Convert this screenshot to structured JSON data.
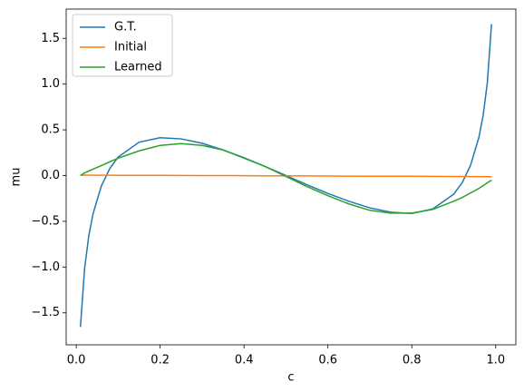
{
  "chart_data": {
    "type": "line",
    "xlabel": "c",
    "ylabel": "mu",
    "x": [
      0.01,
      0.02,
      0.03,
      0.04,
      0.06,
      0.08,
      0.1,
      0.15,
      0.2,
      0.25,
      0.3,
      0.35,
      0.4,
      0.45,
      0.5,
      0.55,
      0.6,
      0.65,
      0.7,
      0.75,
      0.8,
      0.85,
      0.9,
      0.92,
      0.94,
      0.96,
      0.97,
      0.98,
      0.99
    ],
    "series": [
      {
        "name": "G.T.",
        "color": "#1f77b4",
        "values": [
          -1.655,
          -1.012,
          -0.656,
          -0.418,
          -0.112,
          0.078,
          0.203,
          0.365,
          0.414,
          0.401,
          0.353,
          0.281,
          0.195,
          0.1,
          0,
          -0.1,
          -0.195,
          -0.281,
          -0.353,
          -0.401,
          -0.414,
          -0.365,
          -0.203,
          -0.078,
          0.112,
          0.418,
          0.656,
          1.012,
          1.655
        ]
      },
      {
        "name": "Initial",
        "color": "#ff7f0e",
        "values": [
          0.005,
          0.005,
          0.005,
          0.004,
          0.004,
          0.004,
          0.003,
          0.003,
          0.002,
          0.001,
          0.0,
          0.0,
          -0.001,
          -0.002,
          -0.003,
          -0.004,
          -0.005,
          -0.006,
          -0.007,
          -0.008,
          -0.008,
          -0.009,
          -0.01,
          -0.01,
          -0.011,
          -0.011,
          -0.011,
          -0.012,
          -0.012
        ]
      },
      {
        "name": "Learned",
        "color": "#2ca02c",
        "values": [
          0.0,
          0.03,
          0.05,
          0.07,
          0.11,
          0.15,
          0.19,
          0.27,
          0.33,
          0.35,
          0.33,
          0.28,
          0.19,
          0.1,
          -0.01,
          -0.12,
          -0.22,
          -0.31,
          -0.38,
          -0.41,
          -0.41,
          -0.37,
          -0.28,
          -0.24,
          -0.19,
          -0.14,
          -0.11,
          -0.08,
          -0.05
        ]
      }
    ],
    "xlim": [
      -0.024,
      1.048
    ],
    "ylim": [
      -1.85,
      1.82
    ],
    "xticks": [
      {
        "value": 0,
        "label": "0.0"
      },
      0.2,
      0.4,
      0.6,
      0.8,
      {
        "value": 1,
        "label": "1.0"
      }
    ],
    "yticks": [
      -1.5,
      {
        "value": -1,
        "label": "−1.0"
      },
      -0.5,
      {
        "value": 0,
        "label": "0.0"
      },
      0.5,
      {
        "value": 1,
        "label": "1.0"
      },
      1.5
    ],
    "legend": "upper left",
    "grid": false
  }
}
